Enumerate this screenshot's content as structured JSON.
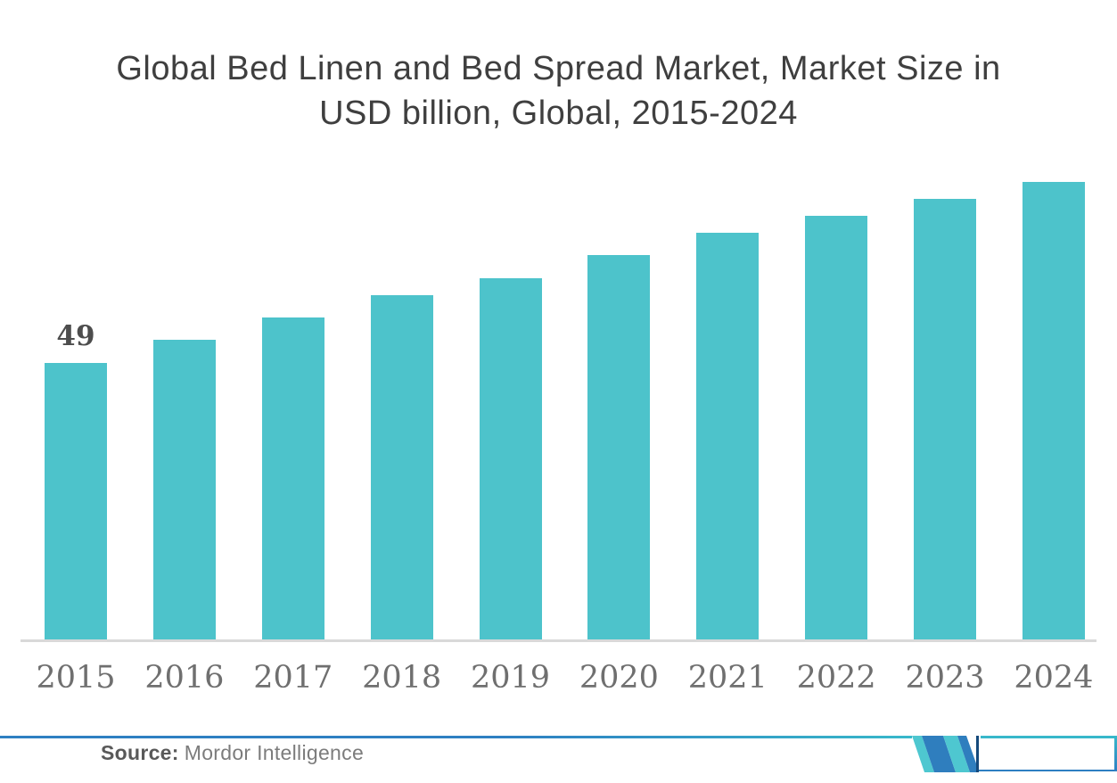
{
  "title": {
    "line1": "Global Bed Linen and Bed Spread Market, Market Size in",
    "line2": "USD billion, Global, 2015-2024"
  },
  "chart_data": {
    "type": "bar",
    "title": "Global Bed Linen and Bed Spread Market, Market Size in USD billion, Global, 2015-2024",
    "categories": [
      "2015",
      "2016",
      "2017",
      "2018",
      "2019",
      "2020",
      "2021",
      "2022",
      "2023",
      "2024"
    ],
    "values": [
      49,
      53,
      57,
      61,
      64,
      68,
      72,
      75,
      78,
      81
    ],
    "point_labels": [
      "49",
      "",
      "",
      "",
      "",
      "",
      "",
      "",
      "",
      ""
    ],
    "xlabel": "",
    "ylabel": "Market Size in USD billion",
    "ylim": [
      0,
      85
    ],
    "grid": false,
    "legend": "none",
    "bar_color": "#4dc3cb"
  },
  "footer": {
    "source_label": "Source:",
    "source_value": "Mordor Intelligence"
  },
  "colors": {
    "bar": "#4dc3cb",
    "title_text": "#3f3f3f",
    "tick_text": "#6f6f6f",
    "value_label_text": "#4d4d4d",
    "axis_line": "#d9d9d9",
    "rule_blue": "#2e7fc2",
    "rule_teal": "#38b8ca",
    "logo_teal": "#4ec7d0",
    "logo_blue": "#2f7ebe",
    "logo_navy": "#15497b"
  },
  "logo": {
    "name": "mordor-intelligence-logo"
  }
}
